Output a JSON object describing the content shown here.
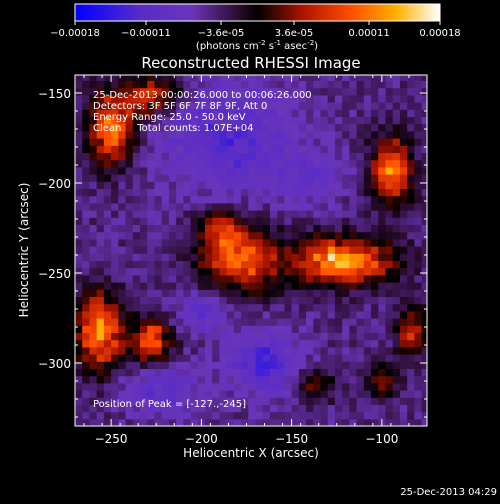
{
  "colorbar": {
    "ticks": [
      "-0.00018",
      "-0.00011",
      "-3.6e-05",
      "3.6e-05",
      "0.00011",
      "0.00018"
    ],
    "unit_parts": [
      "(photons cm",
      "-2",
      " s",
      "-1",
      " asec",
      "-2",
      ")"
    ],
    "cmap_stops": [
      "#0000ff",
      "#6a35b8",
      "#2a0b2d",
      "#000000",
      "#a81300",
      "#ff4a00",
      "#ffb000",
      "#ffffff"
    ]
  },
  "chart_data": {
    "type": "heatmap",
    "title": "Reconstructed RHESSI Image",
    "xlabel": "Heliocentric X (arcsec)",
    "ylabel": "Heliocentric Y (arcsec)",
    "xlim": [
      -270,
      -75
    ],
    "ylim": [
      -335,
      -140
    ],
    "xticks": [
      -250,
      -200,
      -150,
      -100
    ],
    "yticks": [
      -150,
      -200,
      -250,
      -300
    ],
    "x_tick_labels": [
      "−250",
      "−200",
      "−150",
      "−100"
    ],
    "y_tick_labels": [
      "−150",
      "−200",
      "−250",
      "−300"
    ],
    "annotations": [
      "25-Dec-2013 00:00:26.000 to 00:06:26.000",
      "Detectors: 3F 5F 6F 7F 8F 9F, Att 0",
      "Energy Range: 25.0 - 50.0 keV",
      "Clean     Total counts: 1.07E+04"
    ],
    "peak_label": "Position of Peak = [-127.,-245]",
    "peak": [
      -127,
      -245
    ],
    "value_range": [
      -0.00018,
      0.00018
    ],
    "sources": [
      {
        "x": -122,
        "y": -243,
        "sx": 19,
        "sy": 9,
        "amp": 0.00018
      },
      {
        "x": -180,
        "y": -242,
        "sx": 15,
        "sy": 13,
        "amp": 0.00014
      },
      {
        "x": -257,
        "y": -283,
        "sx": 9,
        "sy": 15,
        "amp": 0.00016
      },
      {
        "x": -228,
        "y": -287,
        "sx": 8,
        "sy": 9,
        "amp": 0.00013
      },
      {
        "x": -250,
        "y": -170,
        "sx": 9,
        "sy": 14,
        "amp": 0.00015
      },
      {
        "x": -227,
        "y": -151,
        "sx": 11,
        "sy": 8,
        "amp": 0.00011
      },
      {
        "x": -95,
        "y": -193,
        "sx": 8,
        "sy": 13,
        "amp": 0.00015
      },
      {
        "x": -83,
        "y": -282,
        "sx": 6,
        "sy": 10,
        "amp": 0.0001
      },
      {
        "x": -137,
        "y": -312,
        "sx": 7,
        "sy": 6,
        "amp": 8e-05
      },
      {
        "x": -100,
        "y": -310,
        "sx": 6,
        "sy": 6,
        "amp": 9e-05
      },
      {
        "x": -190,
        "y": -225,
        "sx": 8,
        "sy": 8,
        "amp": 8e-05
      }
    ],
    "negative_regions": [
      {
        "x": -185,
        "y": -175,
        "sx": 26,
        "sy": 22,
        "amp": -7e-05
      },
      {
        "x": -165,
        "y": -300,
        "sx": 14,
        "sy": 12,
        "amp": -8e-05
      },
      {
        "x": -222,
        "y": -315,
        "sx": 15,
        "sy": 10,
        "amp": -6e-05
      },
      {
        "x": -140,
        "y": -196,
        "sx": 13,
        "sy": 9,
        "amp": -5e-05
      },
      {
        "x": -200,
        "y": -270,
        "sx": 10,
        "sy": 9,
        "amp": -6e-05
      }
    ],
    "colormap": "blue-purple-black-red-yellow-white"
  },
  "footer_timestamp": "25-Dec-2013 04:29"
}
